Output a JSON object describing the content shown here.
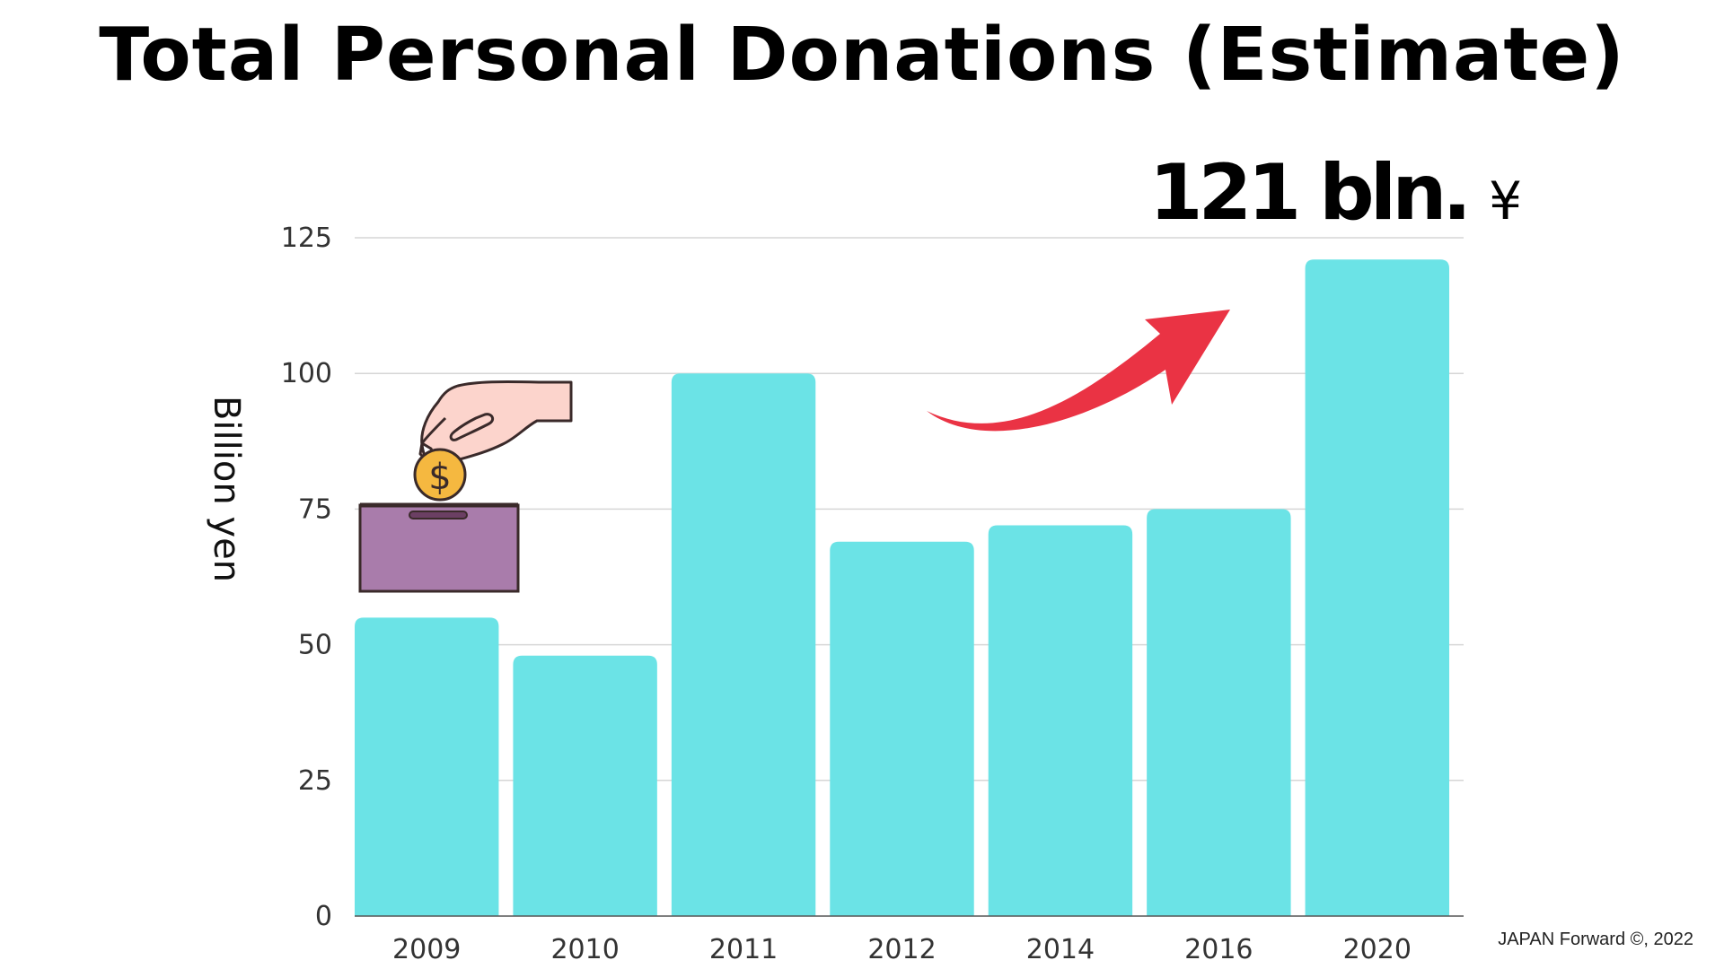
{
  "colors": {
    "bar": "#6be3e6",
    "grid": "#d6d6d6",
    "axis": "#555555",
    "arrow": "#ea3344",
    "box": "#a97cab",
    "coin": "#f5b840",
    "hand": "#fcd4cc"
  },
  "chart_data": {
    "type": "bar",
    "title": "Total Personal Donations (Estimate)",
    "xlabel": "",
    "ylabel": "Billion yen",
    "categories": [
      "2009",
      "2010",
      "2011",
      "2012",
      "2014",
      "2016",
      "2020"
    ],
    "values": [
      55,
      48,
      100,
      69,
      72,
      75,
      121
    ],
    "ylim": [
      0,
      125
    ],
    "yticks": [
      0,
      25,
      50,
      75,
      100,
      125
    ],
    "grid": true,
    "annotation": {
      "value": "121 bln.",
      "unit": "¥"
    }
  },
  "credit": "JAPAN Forward ©, 2022",
  "illustrations": [
    "donation-box-icon",
    "coin-icon",
    "hand-icon",
    "arrow-icon"
  ]
}
